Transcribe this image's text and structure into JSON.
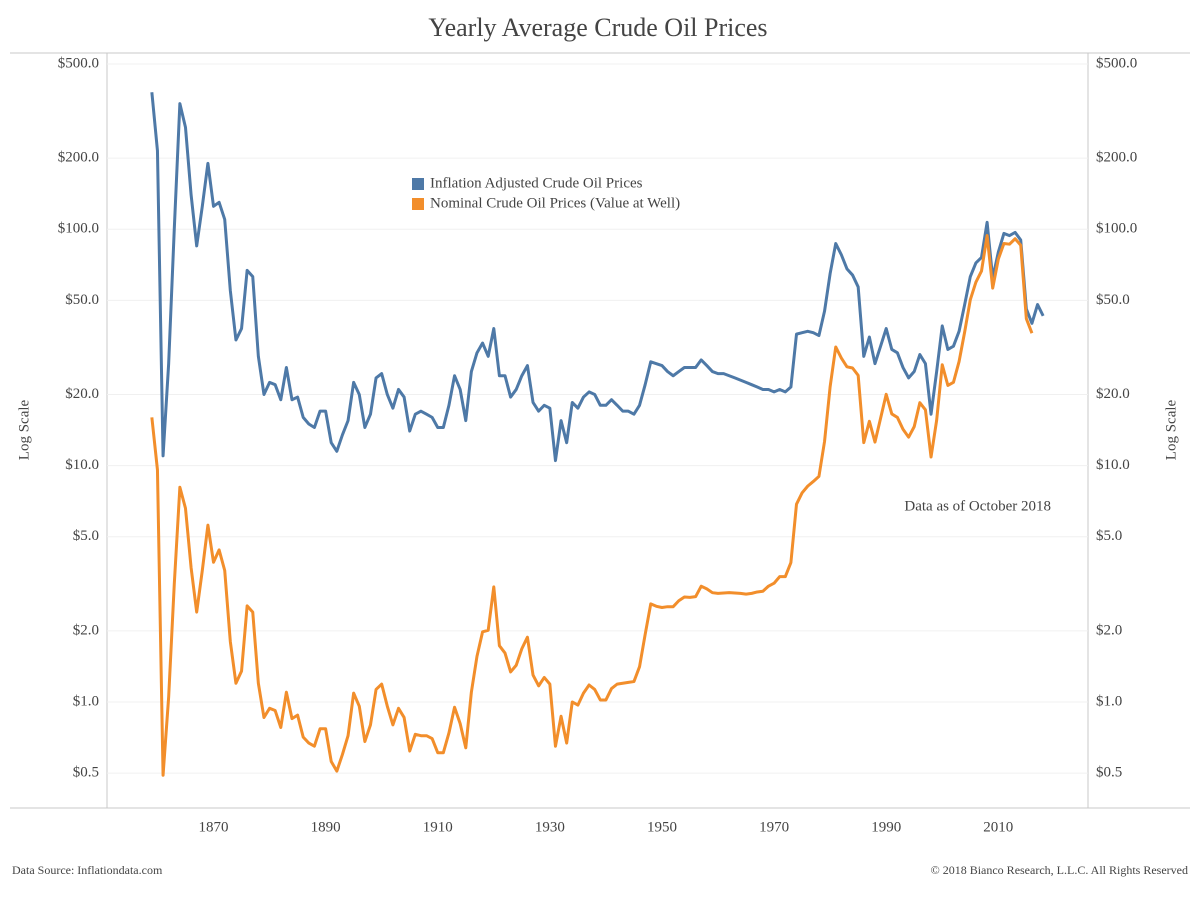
{
  "chart_data": {
    "type": "line",
    "title": "Yearly Average Crude Oil Prices",
    "y_label": "Log Scale",
    "y2_label": "Log Scale",
    "annotation": "Data as of October 2018",
    "source": "Data Source: Inflationdata.com",
    "copyright": "© 2018 Bianco Research, L.L.C. All Rights Reserved",
    "log_scale": true,
    "grid": true,
    "xlim": [
      1851,
      2026
    ],
    "xticks": [
      1870,
      1890,
      1910,
      1930,
      1950,
      1970,
      1990,
      2010
    ],
    "ylim": [
      0.356,
      546
    ],
    "yticks": [
      {
        "value": 500,
        "label": "$500.0"
      },
      {
        "value": 200,
        "label": "$200.0"
      },
      {
        "value": 100,
        "label": "$100.0"
      },
      {
        "value": 50,
        "label": "$50.0"
      },
      {
        "value": 20,
        "label": "$20.0"
      },
      {
        "value": 10,
        "label": "$10.0"
      },
      {
        "value": 5,
        "label": "$5.0"
      },
      {
        "value": 2,
        "label": "$2.0"
      },
      {
        "value": 1,
        "label": "$1.0"
      },
      {
        "value": 0.5,
        "label": "$0.5"
      }
    ],
    "y2lim": [
      0.356,
      546
    ],
    "y2ticks": [
      {
        "value": 500,
        "label": "$500.0"
      },
      {
        "value": 200,
        "label": "$200.0"
      },
      {
        "value": 100,
        "label": "$100.0"
      },
      {
        "value": 50,
        "label": "$50.0"
      },
      {
        "value": 20,
        "label": "$20.0"
      },
      {
        "value": 10,
        "label": "$10.0"
      },
      {
        "value": 5,
        "label": "$5.0"
      },
      {
        "value": 2,
        "label": "$2.0"
      },
      {
        "value": 1,
        "label": "$1.0"
      },
      {
        "value": 0.5,
        "label": "$0.5"
      }
    ],
    "x": [
      1859,
      1860,
      1861,
      1862,
      1863,
      1864,
      1865,
      1866,
      1867,
      1868,
      1869,
      1870,
      1871,
      1872,
      1873,
      1874,
      1875,
      1876,
      1877,
      1878,
      1879,
      1880,
      1881,
      1882,
      1883,
      1884,
      1885,
      1886,
      1887,
      1888,
      1889,
      1890,
      1891,
      1892,
      1893,
      1894,
      1895,
      1896,
      1897,
      1898,
      1899,
      1900,
      1901,
      1902,
      1903,
      1904,
      1905,
      1906,
      1907,
      1908,
      1909,
      1910,
      1911,
      1912,
      1913,
      1914,
      1915,
      1916,
      1917,
      1918,
      1919,
      1920,
      1921,
      1922,
      1923,
      1924,
      1925,
      1926,
      1927,
      1928,
      1929,
      1930,
      1931,
      1932,
      1933,
      1934,
      1935,
      1936,
      1937,
      1938,
      1939,
      1940,
      1941,
      1942,
      1943,
      1944,
      1945,
      1946,
      1947,
      1948,
      1949,
      1950,
      1951,
      1952,
      1953,
      1954,
      1955,
      1956,
      1957,
      1958,
      1959,
      1960,
      1961,
      1962,
      1963,
      1964,
      1965,
      1966,
      1967,
      1968,
      1969,
      1970,
      1971,
      1972,
      1973,
      1974,
      1975,
      1976,
      1977,
      1978,
      1979,
      1980,
      1981,
      1982,
      1983,
      1984,
      1985,
      1986,
      1987,
      1988,
      1989,
      1990,
      1991,
      1992,
      1993,
      1994,
      1995,
      1996,
      1997,
      1998,
      1999,
      2000,
      2001,
      2002,
      2003,
      2004,
      2005,
      2006,
      2007,
      2008,
      2009,
      2010,
      2011,
      2012,
      2013,
      2014,
      2015,
      2016,
      2017,
      2018
    ],
    "series": [
      {
        "name": "Inflation Adjusted Crude Oil Prices",
        "color": "#4e79a7",
        "values": [
          380,
          215,
          11,
          27,
          100,
          340,
          270,
          140,
          85,
          125,
          190,
          125,
          130,
          110,
          55,
          34,
          38,
          67,
          63,
          29,
          20,
          22.5,
          22,
          19,
          26,
          19,
          19.5,
          16,
          15,
          14.5,
          17,
          17,
          12.5,
          11.5,
          13.5,
          15.5,
          22.5,
          20,
          14.5,
          16.5,
          23.5,
          24.5,
          20,
          17.5,
          21,
          19.5,
          14,
          16.5,
          17,
          16.5,
          16,
          14.5,
          14.5,
          18,
          24,
          21,
          15.5,
          25,
          30,
          33,
          29,
          38,
          24,
          24,
          19.5,
          21,
          24,
          26.5,
          18.5,
          17,
          18,
          17.5,
          10.5,
          15.5,
          12.5,
          18.5,
          17.5,
          19.5,
          20.5,
          20,
          18,
          18,
          19,
          18,
          17,
          17,
          16.5,
          18,
          22,
          27.5,
          27,
          26.5,
          25,
          24,
          25,
          26,
          26,
          26,
          28,
          26.5,
          25,
          24.5,
          24.5,
          24,
          23.5,
          23,
          22.5,
          22,
          21.5,
          21,
          21,
          20.5,
          21,
          20.5,
          21.5,
          36,
          36.5,
          37,
          36.5,
          35.5,
          45,
          65,
          87,
          78,
          68,
          64,
          57,
          29,
          35,
          27,
          32,
          38,
          31,
          30,
          26,
          23.5,
          25,
          29.5,
          27,
          16.5,
          25,
          39,
          31,
          32,
          37,
          48,
          63,
          72,
          76,
          107,
          62,
          80,
          96,
          94,
          97,
          90,
          46,
          40,
          48,
          43
        ]
      },
      {
        "name": "Nominal Crude Oil Prices (Value at Well)",
        "color": "#f28e2b",
        "values": [
          16,
          9.6,
          0.49,
          1.05,
          3.15,
          8.1,
          6.6,
          3.7,
          2.4,
          3.6,
          5.6,
          3.9,
          4.4,
          3.6,
          1.8,
          1.2,
          1.35,
          2.55,
          2.4,
          1.2,
          0.86,
          0.94,
          0.92,
          0.78,
          1.1,
          0.85,
          0.88,
          0.71,
          0.67,
          0.65,
          0.77,
          0.77,
          0.56,
          0.51,
          0.6,
          0.72,
          1.09,
          0.96,
          0.68,
          0.8,
          1.13,
          1.19,
          0.96,
          0.8,
          0.94,
          0.86,
          0.62,
          0.73,
          0.72,
          0.72,
          0.7,
          0.61,
          0.61,
          0.74,
          0.95,
          0.81,
          0.64,
          1.1,
          1.56,
          1.98,
          2.01,
          3.07,
          1.73,
          1.61,
          1.34,
          1.43,
          1.68,
          1.88,
          1.3,
          1.17,
          1.27,
          1.19,
          0.65,
          0.87,
          0.67,
          1.0,
          0.97,
          1.09,
          1.18,
          1.13,
          1.02,
          1.02,
          1.14,
          1.19,
          1.2,
          1.21,
          1.22,
          1.41,
          1.93,
          2.6,
          2.54,
          2.51,
          2.53,
          2.53,
          2.68,
          2.78,
          2.77,
          2.79,
          3.09,
          3.01,
          2.9,
          2.88,
          2.89,
          2.9,
          2.89,
          2.88,
          2.86,
          2.88,
          2.92,
          2.94,
          3.09,
          3.18,
          3.39,
          3.39,
          3.89,
          6.87,
          7.67,
          8.19,
          8.57,
          9.0,
          12.64,
          21.59,
          31.77,
          28.52,
          26.19,
          25.88,
          24.09,
          12.51,
          15.4,
          12.58,
          15.86,
          20.03,
          16.54,
          15.99,
          14.25,
          13.19,
          14.62,
          18.46,
          17.23,
          10.87,
          15.56,
          26.72,
          21.84,
          22.51,
          27.56,
          36.77,
          50.28,
          59.69,
          66.52,
          94.04,
          56.35,
          74.71,
          87.04,
          86.46,
          91.17,
          85.6,
          41.85,
          36.34,
          null,
          null
        ]
      }
    ]
  }
}
